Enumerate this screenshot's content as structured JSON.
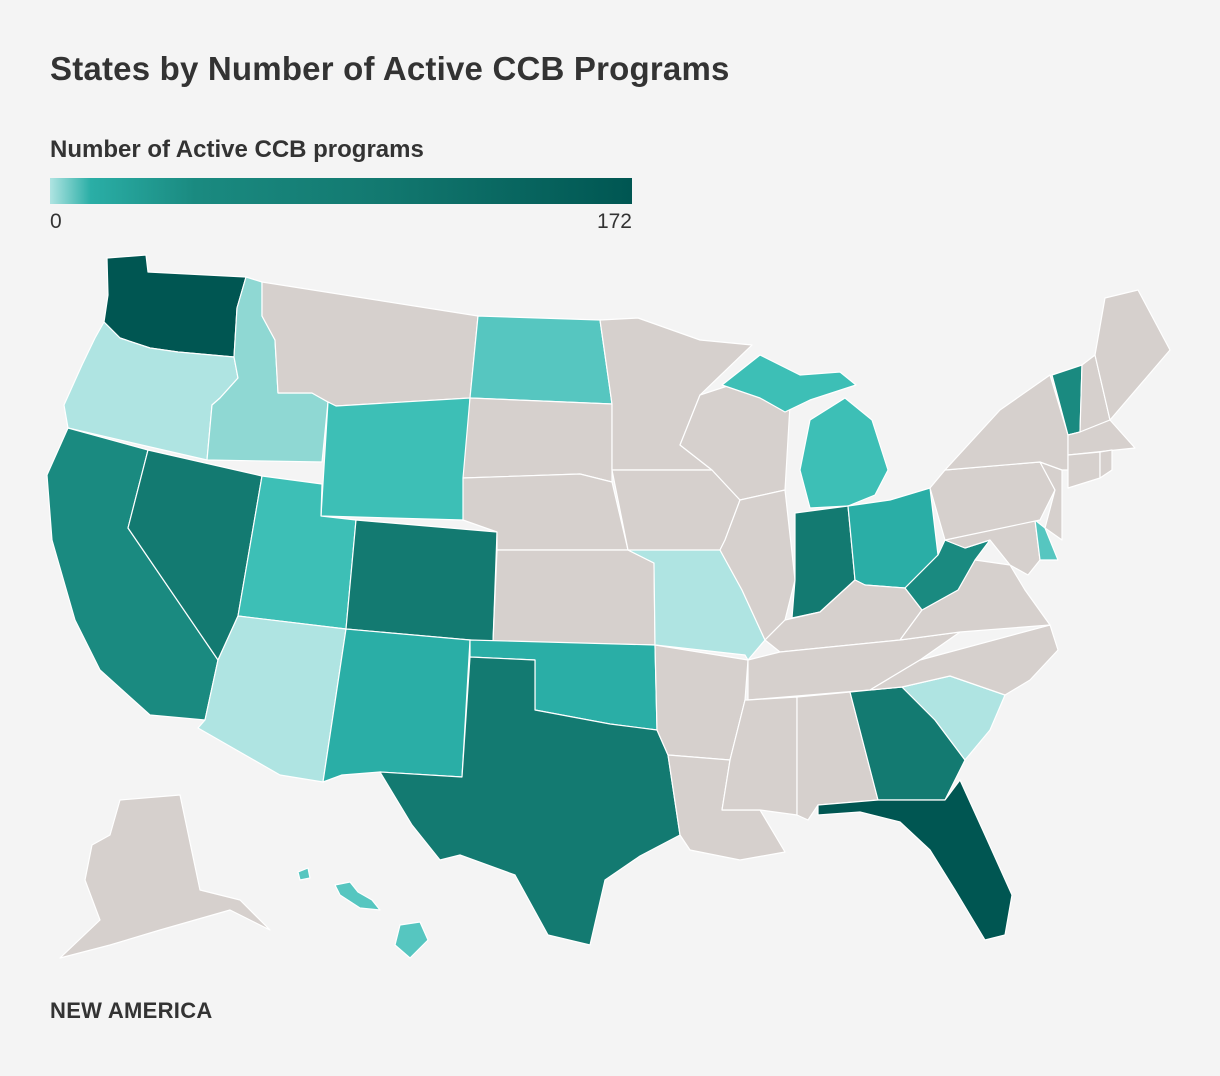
{
  "title": "States by Number of Active CCB Programs",
  "legend": {
    "title": "Number of Active CCB programs",
    "min_label": "0",
    "max_label": "172",
    "min_value": 0,
    "max_value": 172
  },
  "colors": {
    "background": "#f4f4f4",
    "no_data": "#d6d0cd",
    "scale": [
      "#afe4e2",
      "#56c6c0",
      "#3dbfb6",
      "#2aaea6",
      "#1a8a80",
      "#137a71",
      "#005652"
    ]
  },
  "states": [
    {
      "id": "WA",
      "color": "#005652"
    },
    {
      "id": "OR",
      "color": "#afe4e2"
    },
    {
      "id": "CA",
      "color": "#1a8a80"
    },
    {
      "id": "NV",
      "color": "#137a71"
    },
    {
      "id": "ID",
      "color": "#8fd8d3"
    },
    {
      "id": "MT",
      "color": "#d6d0cd"
    },
    {
      "id": "WY",
      "color": "#3dbfb6"
    },
    {
      "id": "UT",
      "color": "#3dbfb6"
    },
    {
      "id": "AZ",
      "color": "#afe4e2"
    },
    {
      "id": "CO",
      "color": "#137a71"
    },
    {
      "id": "NM",
      "color": "#2aaea6"
    },
    {
      "id": "ND",
      "color": "#56c6c0"
    },
    {
      "id": "SD",
      "color": "#d6d0cd"
    },
    {
      "id": "NE",
      "color": "#d6d0cd"
    },
    {
      "id": "KS",
      "color": "#d6d0cd"
    },
    {
      "id": "OK",
      "color": "#2aaea6"
    },
    {
      "id": "TX",
      "color": "#137a71"
    },
    {
      "id": "MN",
      "color": "#d6d0cd"
    },
    {
      "id": "IA",
      "color": "#d6d0cd"
    },
    {
      "id": "MO",
      "color": "#afe4e2"
    },
    {
      "id": "AR",
      "color": "#d6d0cd"
    },
    {
      "id": "LA",
      "color": "#d6d0cd"
    },
    {
      "id": "WI",
      "color": "#d6d0cd"
    },
    {
      "id": "IL",
      "color": "#d6d0cd"
    },
    {
      "id": "MI",
      "color": "#3dbfb6"
    },
    {
      "id": "IN",
      "color": "#137a71"
    },
    {
      "id": "OH",
      "color": "#2aaea6"
    },
    {
      "id": "KY",
      "color": "#d6d0cd"
    },
    {
      "id": "TN",
      "color": "#d6d0cd"
    },
    {
      "id": "MS",
      "color": "#d6d0cd"
    },
    {
      "id": "AL",
      "color": "#d6d0cd"
    },
    {
      "id": "GA",
      "color": "#137a71"
    },
    {
      "id": "FL",
      "color": "#005652"
    },
    {
      "id": "SC",
      "color": "#afe4e2"
    },
    {
      "id": "NC",
      "color": "#d6d0cd"
    },
    {
      "id": "VA",
      "color": "#d6d0cd"
    },
    {
      "id": "WV",
      "color": "#1a8a80"
    },
    {
      "id": "MD",
      "color": "#d6d0cd"
    },
    {
      "id": "DE",
      "color": "#56c6c0"
    },
    {
      "id": "PA",
      "color": "#d6d0cd"
    },
    {
      "id": "NJ",
      "color": "#d6d0cd"
    },
    {
      "id": "NY",
      "color": "#d6d0cd"
    },
    {
      "id": "VT",
      "color": "#1a8a80"
    },
    {
      "id": "NH",
      "color": "#d6d0cd"
    },
    {
      "id": "ME",
      "color": "#d6d0cd"
    },
    {
      "id": "MA",
      "color": "#d6d0cd"
    },
    {
      "id": "CT",
      "color": "#d6d0cd"
    },
    {
      "id": "RI",
      "color": "#d6d0cd"
    },
    {
      "id": "AK",
      "color": "#d6d0cd"
    },
    {
      "id": "HI",
      "color": "#56c6c0"
    }
  ],
  "footer": "NEW AMERICA"
}
